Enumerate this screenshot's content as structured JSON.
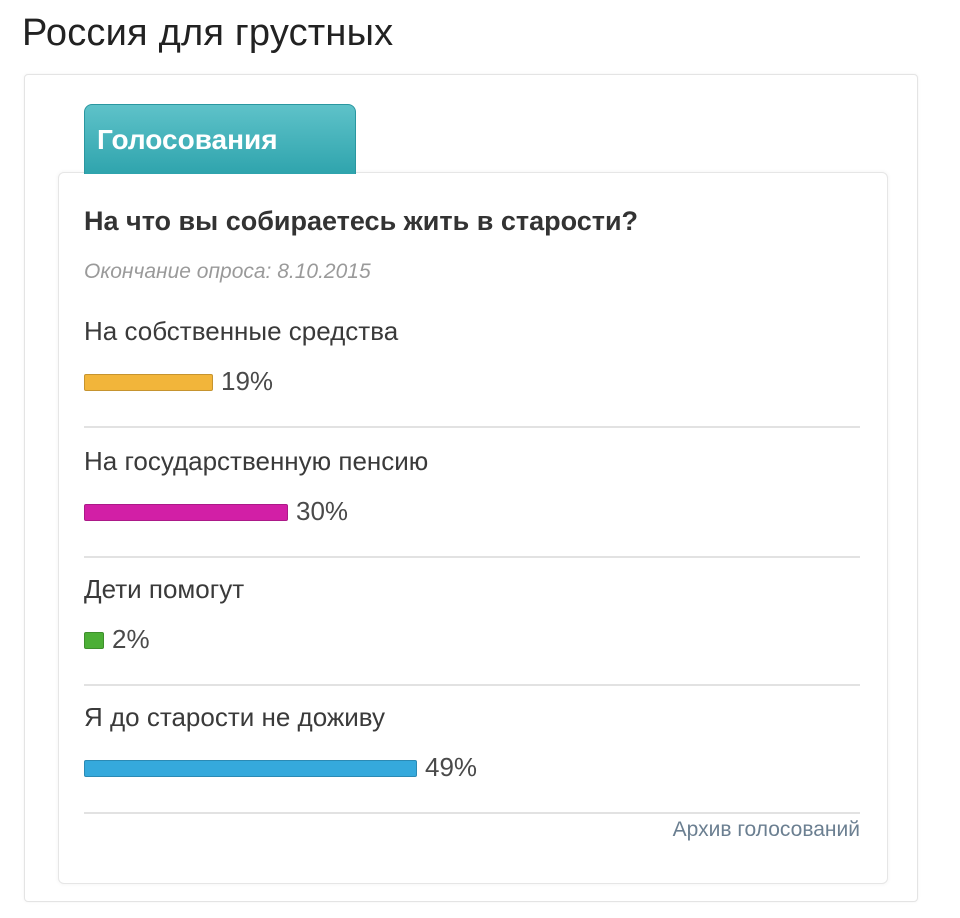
{
  "page": {
    "title": "Россия для грустных"
  },
  "widget": {
    "tab_label": "Голосования",
    "question": "На что вы собираетесь жить в старости?",
    "end_date": "Окончание опроса: 8.10.2015",
    "options": [
      {
        "label": "На собственные средства",
        "percent_text": "19%",
        "fraction": 0.19,
        "color": "#f2b53a"
      },
      {
        "label": "На государственную пенсию",
        "percent_text": "30%",
        "fraction": 0.3,
        "color": "#d21fa6"
      },
      {
        "label": "Дети помогут",
        "percent_text": "2%",
        "fraction": 0.02,
        "color": "#4caf36"
      },
      {
        "label": "Я до старости не доживу",
        "percent_text": "49%",
        "fraction": 0.49,
        "color": "#35a9dc"
      }
    ],
    "archive_link": "Архив голосований"
  }
}
